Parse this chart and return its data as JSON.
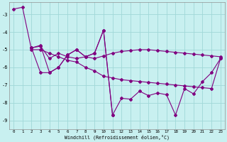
{
  "xlabel": "Windchill (Refroidissement éolien,°C)",
  "background_color": "#c8f0f0",
  "line_color": "#800080",
  "grid_color": "#a0d8d8",
  "xlim": [
    -0.5,
    23.5
  ],
  "ylim": [
    -9.5,
    -2.3
  ],
  "yticks": [
    -9,
    -8,
    -7,
    -6,
    -5,
    -4,
    -3
  ],
  "xticks": [
    0,
    1,
    2,
    3,
    4,
    5,
    6,
    7,
    8,
    9,
    10,
    11,
    12,
    13,
    14,
    15,
    16,
    17,
    18,
    19,
    20,
    21,
    22,
    23
  ],
  "series1_x": [
    0,
    1,
    2,
    3,
    4,
    5,
    6,
    7,
    8,
    9,
    10,
    11,
    12,
    13,
    14,
    15,
    16,
    17,
    18,
    19,
    20,
    21,
    22,
    23
  ],
  "series1_y": [
    -2.7,
    -2.6,
    -5.0,
    -5.0,
    -5.2,
    -5.4,
    -5.6,
    -5.7,
    -6.0,
    -6.2,
    -6.5,
    -6.6,
    -6.7,
    -6.75,
    -6.8,
    -6.85,
    -6.9,
    -6.95,
    -7.0,
    -7.05,
    -7.1,
    -7.15,
    -7.2,
    -5.5
  ],
  "series2_x": [
    2,
    3,
    4,
    5,
    6,
    7,
    8,
    9,
    10,
    11,
    12,
    13,
    14,
    15,
    16,
    17,
    18,
    19,
    20,
    21,
    22,
    23
  ],
  "series2_y": [
    -4.9,
    -4.75,
    -6.3,
    -6.0,
    -5.3,
    -5.0,
    -5.4,
    -5.2,
    -3.9,
    -8.7,
    -7.75,
    -7.8,
    -7.35,
    -7.6,
    -7.45,
    -7.55,
    -8.7,
    -7.2,
    -7.5,
    -6.8,
    -6.3,
    -5.5
  ],
  "series3_x": [
    2,
    3,
    4,
    5,
    6,
    7,
    8,
    9,
    10,
    11
  ],
  "series3_y": [
    -4.9,
    -6.3,
    -6.3,
    -6.0,
    -5.3,
    -5.0,
    -5.4,
    -5.2,
    -3.9,
    -8.7
  ],
  "series4_x": [
    2,
    3,
    4,
    5,
    6,
    7,
    8,
    9,
    10,
    11,
    12,
    13,
    14,
    15,
    16,
    17,
    18,
    19,
    20,
    21,
    22,
    23
  ],
  "series4_y": [
    -4.9,
    -4.8,
    -5.5,
    -5.2,
    -5.4,
    -5.5,
    -5.4,
    -5.5,
    -5.35,
    -5.2,
    -5.1,
    -5.05,
    -5.0,
    -5.0,
    -5.05,
    -5.1,
    -5.15,
    -5.2,
    -5.25,
    -5.3,
    -5.35,
    -5.4
  ]
}
